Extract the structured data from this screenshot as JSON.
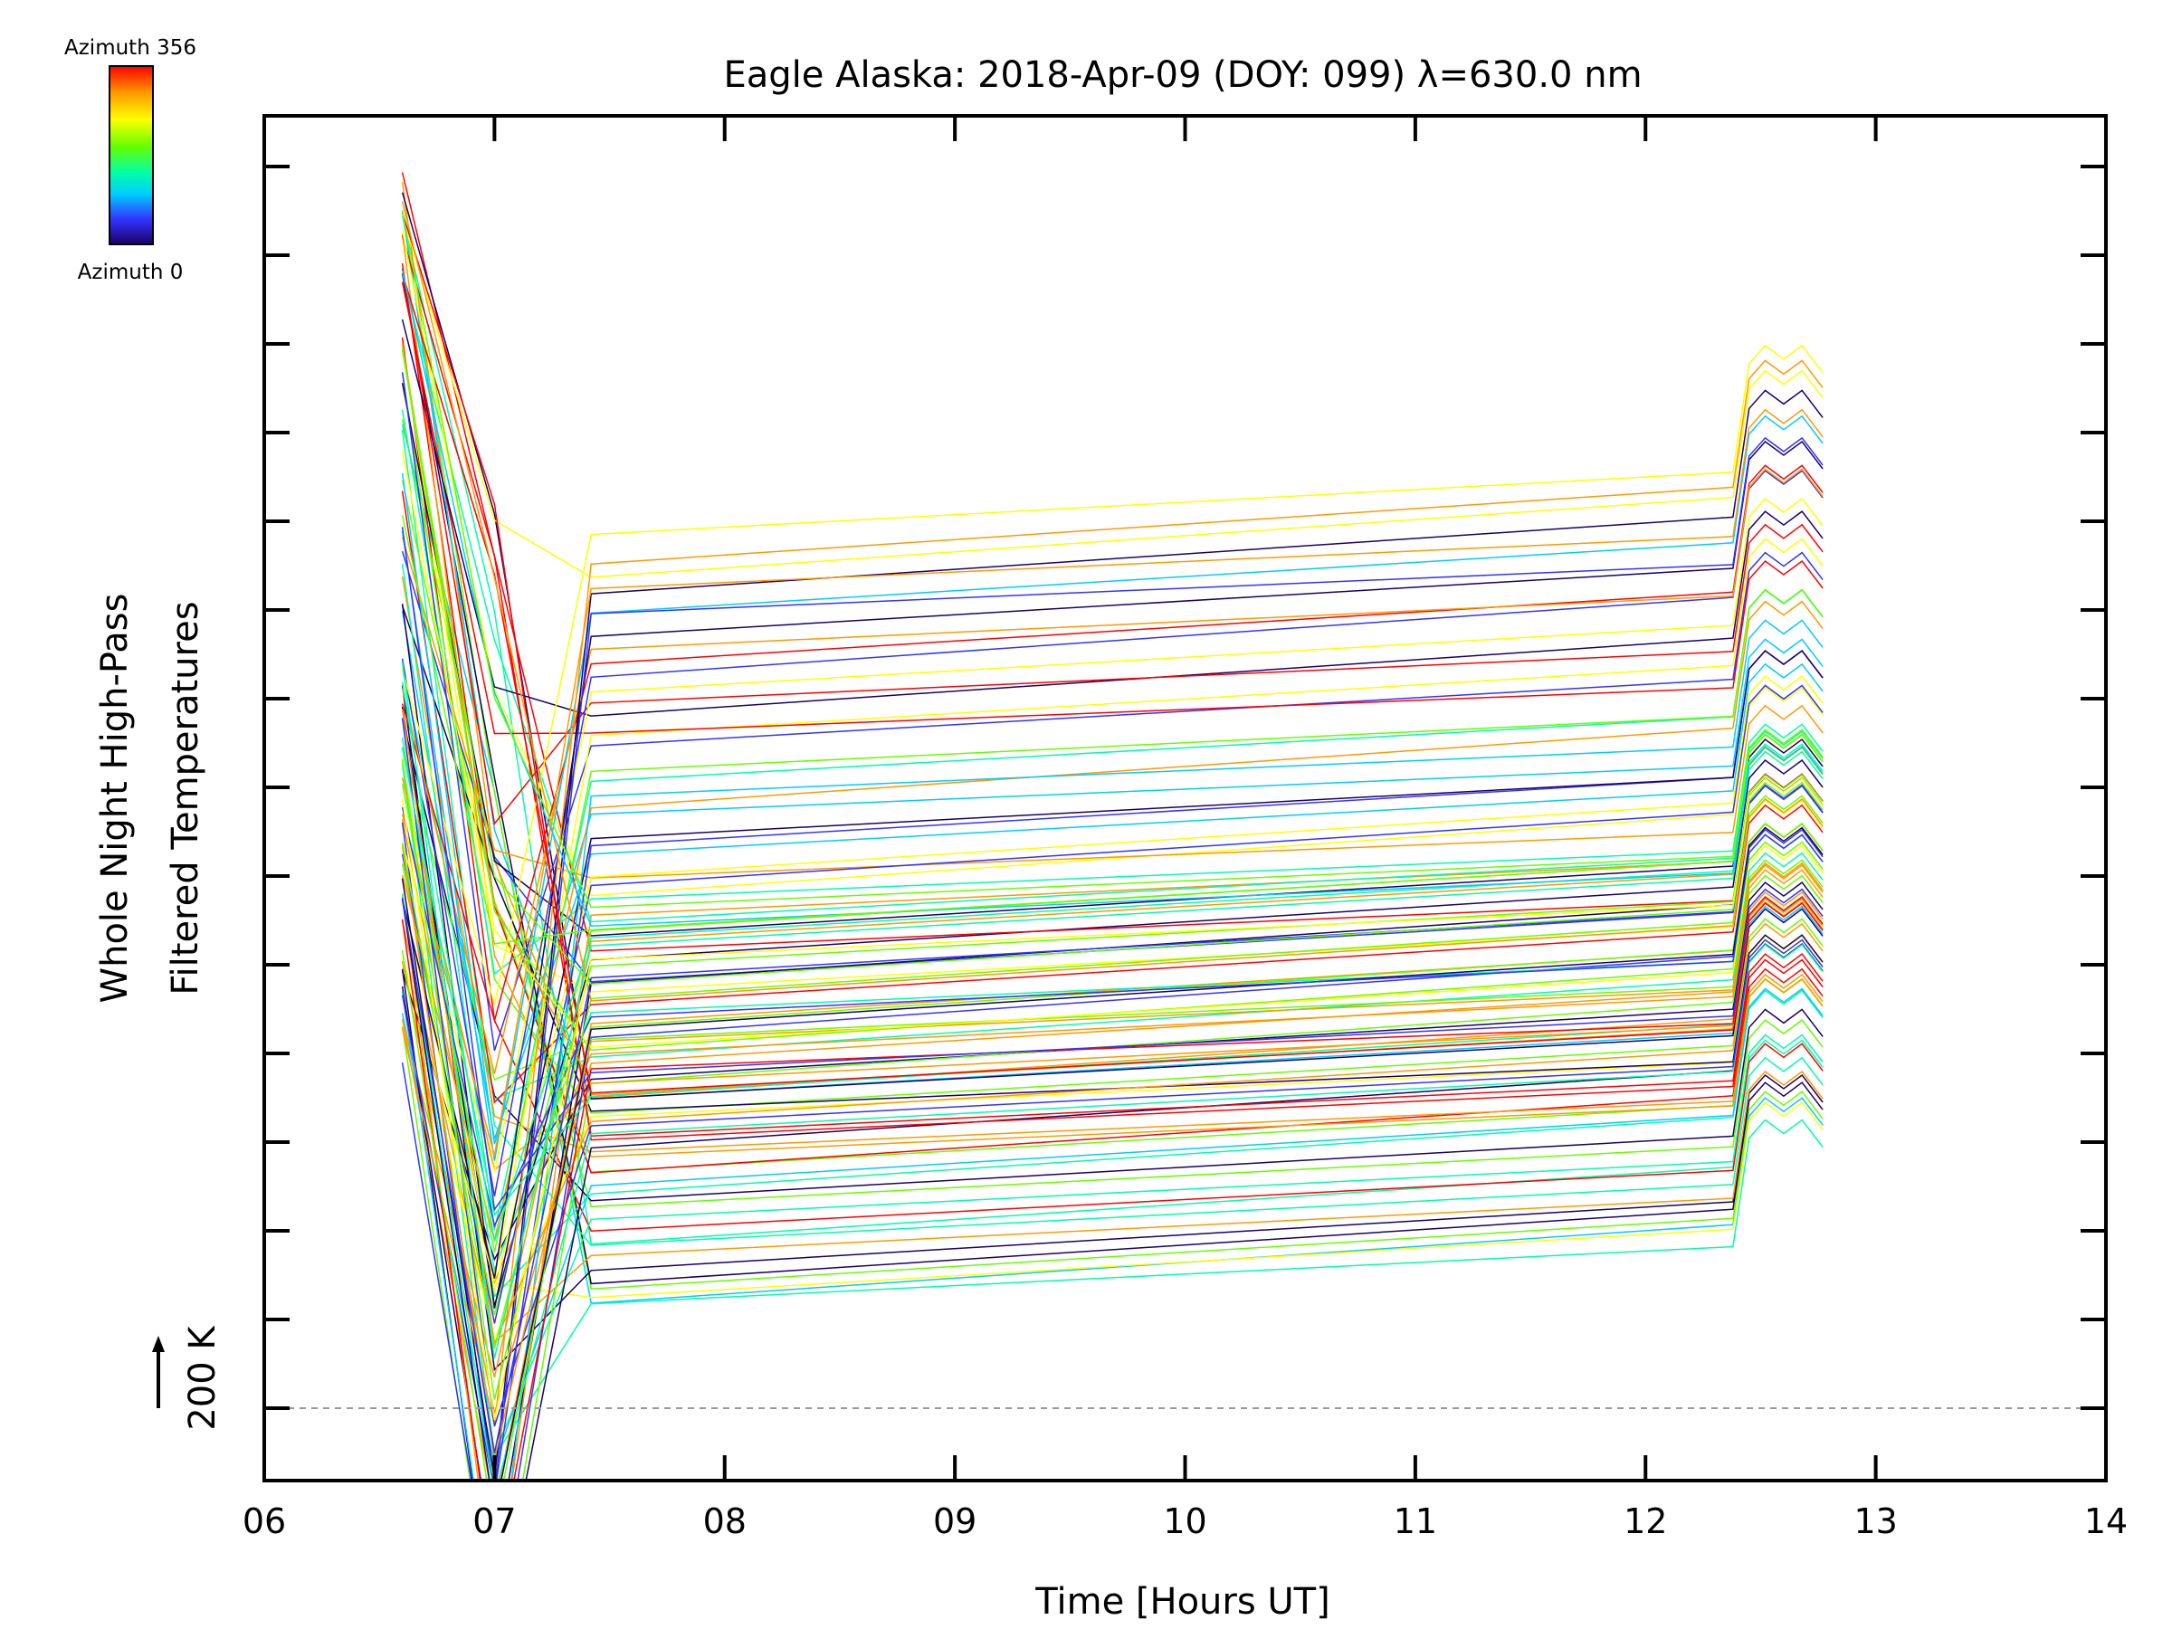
{
  "chart_data": {
    "type": "line",
    "title": "Eagle Alaska: 2018-Apr-09 (DOY: 099) λ=630.0 nm",
    "xlabel": "Time [Hours UT]",
    "ylabel_line1": "Whole Night High-Pass",
    "ylabel_line2": "Filtered Temperatures",
    "scale_label": "200 K",
    "scale_value_k": 200,
    "xlim": [
      6,
      14
    ],
    "x_ticks": [
      "06",
      "07",
      "08",
      "09",
      "10",
      "11",
      "12",
      "13",
      "14"
    ],
    "y_tick_count": 16,
    "colorbar": {
      "label_top": "Azimuth 356",
      "label_bottom": "Azimuth 0",
      "range": [
        0,
        356
      ],
      "colormap": "rainbow",
      "colors": [
        "#ff0000",
        "#ff9900",
        "#ffff00",
        "#66ff00",
        "#00ffaa",
        "#00ccff",
        "#3333ff",
        "#1a0066"
      ]
    },
    "reference_line": {
      "style": "dashed",
      "color": "#999999"
    },
    "series_description": "High-pass filtered temperature traces, one per azimuth (0-356), vertically offset; colored by azimuth",
    "series_group_count": 4,
    "time_points": [
      6.6,
      7.0,
      7.42,
      12.38,
      12.45,
      12.52,
      12.6,
      12.68,
      12.77
    ],
    "grid": false,
    "legend": "colorbar top-left"
  }
}
